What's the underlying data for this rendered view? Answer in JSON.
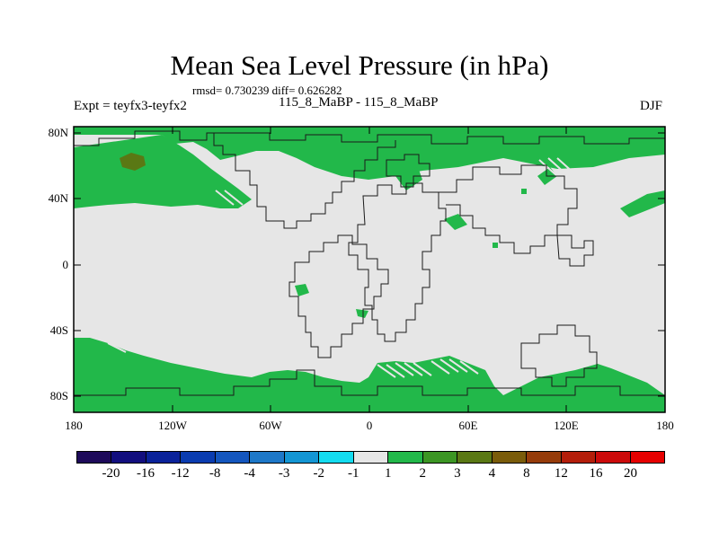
{
  "title": "Mean Sea Level Pressure (in hPa)",
  "stats_line": "rmsd= 0.730239 diff= 0.626282",
  "experiment_label": "Expt = teyfx3-teyfx2",
  "subtitle": "115_8_MaBP - 115_8_MaBP",
  "season": "DJF",
  "y_ticks": [
    "80N",
    "40N",
    "0",
    "40S",
    "80S"
  ],
  "x_ticks": [
    "180",
    "120W",
    "60W",
    "0",
    "60E",
    "120E",
    "180"
  ],
  "colorbar": {
    "labels": [
      "-20",
      "-16",
      "-12",
      "-8",
      "-4",
      "-3",
      "-2",
      "-1",
      "1",
      "2",
      "3",
      "4",
      "8",
      "12",
      "16",
      "20"
    ],
    "colors": [
      "#1e0a5a",
      "#120e7e",
      "#0a229a",
      "#0a3cb0",
      "#1456be",
      "#1e78c8",
      "#1496d4",
      "#14dcf0",
      "#e6e6e6",
      "#22b84a",
      "#3c9624",
      "#5a7814",
      "#7a5c0a",
      "#963c0a",
      "#b41e0a",
      "#cc0a0a",
      "#e60000"
    ]
  },
  "colors": {
    "background_field": "#e6e6e6",
    "positive_anomaly": "#22b84a",
    "strong_positive": "#5a7814",
    "coastline": "#1a1a1a"
  }
}
